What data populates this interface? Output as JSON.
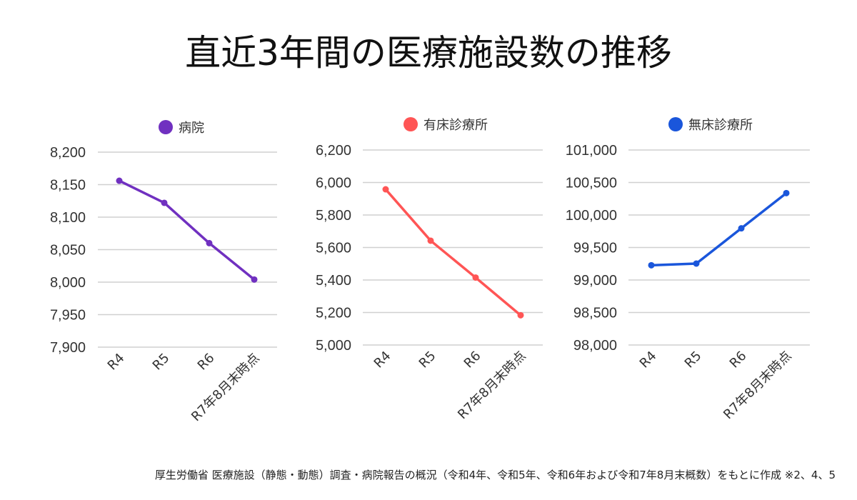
{
  "title": "直近3年間の医療施設数の推移",
  "footer": "厚生労働省 医療施設（静態・動態）調査・病院報告の概況（令和4年、令和5年、令和6年および令和7年8月末概数）をもとに作成 ※2、4、5",
  "chart_data": [
    {
      "type": "line",
      "legend": "病院",
      "color": "#7030c0",
      "categories": [
        "R4",
        "R5",
        "R6",
        "R7年8月末時点"
      ],
      "values": [
        8156,
        8122,
        8060,
        8004
      ],
      "ylim": [
        7900,
        8200
      ],
      "yticks": [
        "7,900",
        "7,950",
        "8,000",
        "8,050",
        "8,100",
        "8,150",
        "8,200"
      ],
      "grid": true,
      "legend_position": "top"
    },
    {
      "type": "line",
      "legend": "有床診療所",
      "color": "#ff5555",
      "categories": [
        "R4",
        "R5",
        "R6",
        "R7年8月末時点"
      ],
      "values": [
        5958,
        5642,
        5415,
        5183
      ],
      "ylim": [
        5000,
        6200
      ],
      "yticks": [
        "5,000",
        "5,200",
        "5,400",
        "5,600",
        "5,800",
        "6,000",
        "6,200"
      ],
      "grid": true,
      "legend_position": "top"
    },
    {
      "type": "line",
      "legend": "無床診療所",
      "color": "#1a56db",
      "categories": [
        "R4",
        "R5",
        "R6",
        "R7年8月末時点"
      ],
      "values": [
        99227,
        99253,
        99795,
        100337
      ],
      "ylim": [
        98000,
        101000
      ],
      "yticks": [
        "98,000",
        "98,500",
        "99,000",
        "99,500",
        "100,000",
        "100,500",
        "101,000"
      ],
      "grid": true,
      "legend_position": "top"
    }
  ]
}
